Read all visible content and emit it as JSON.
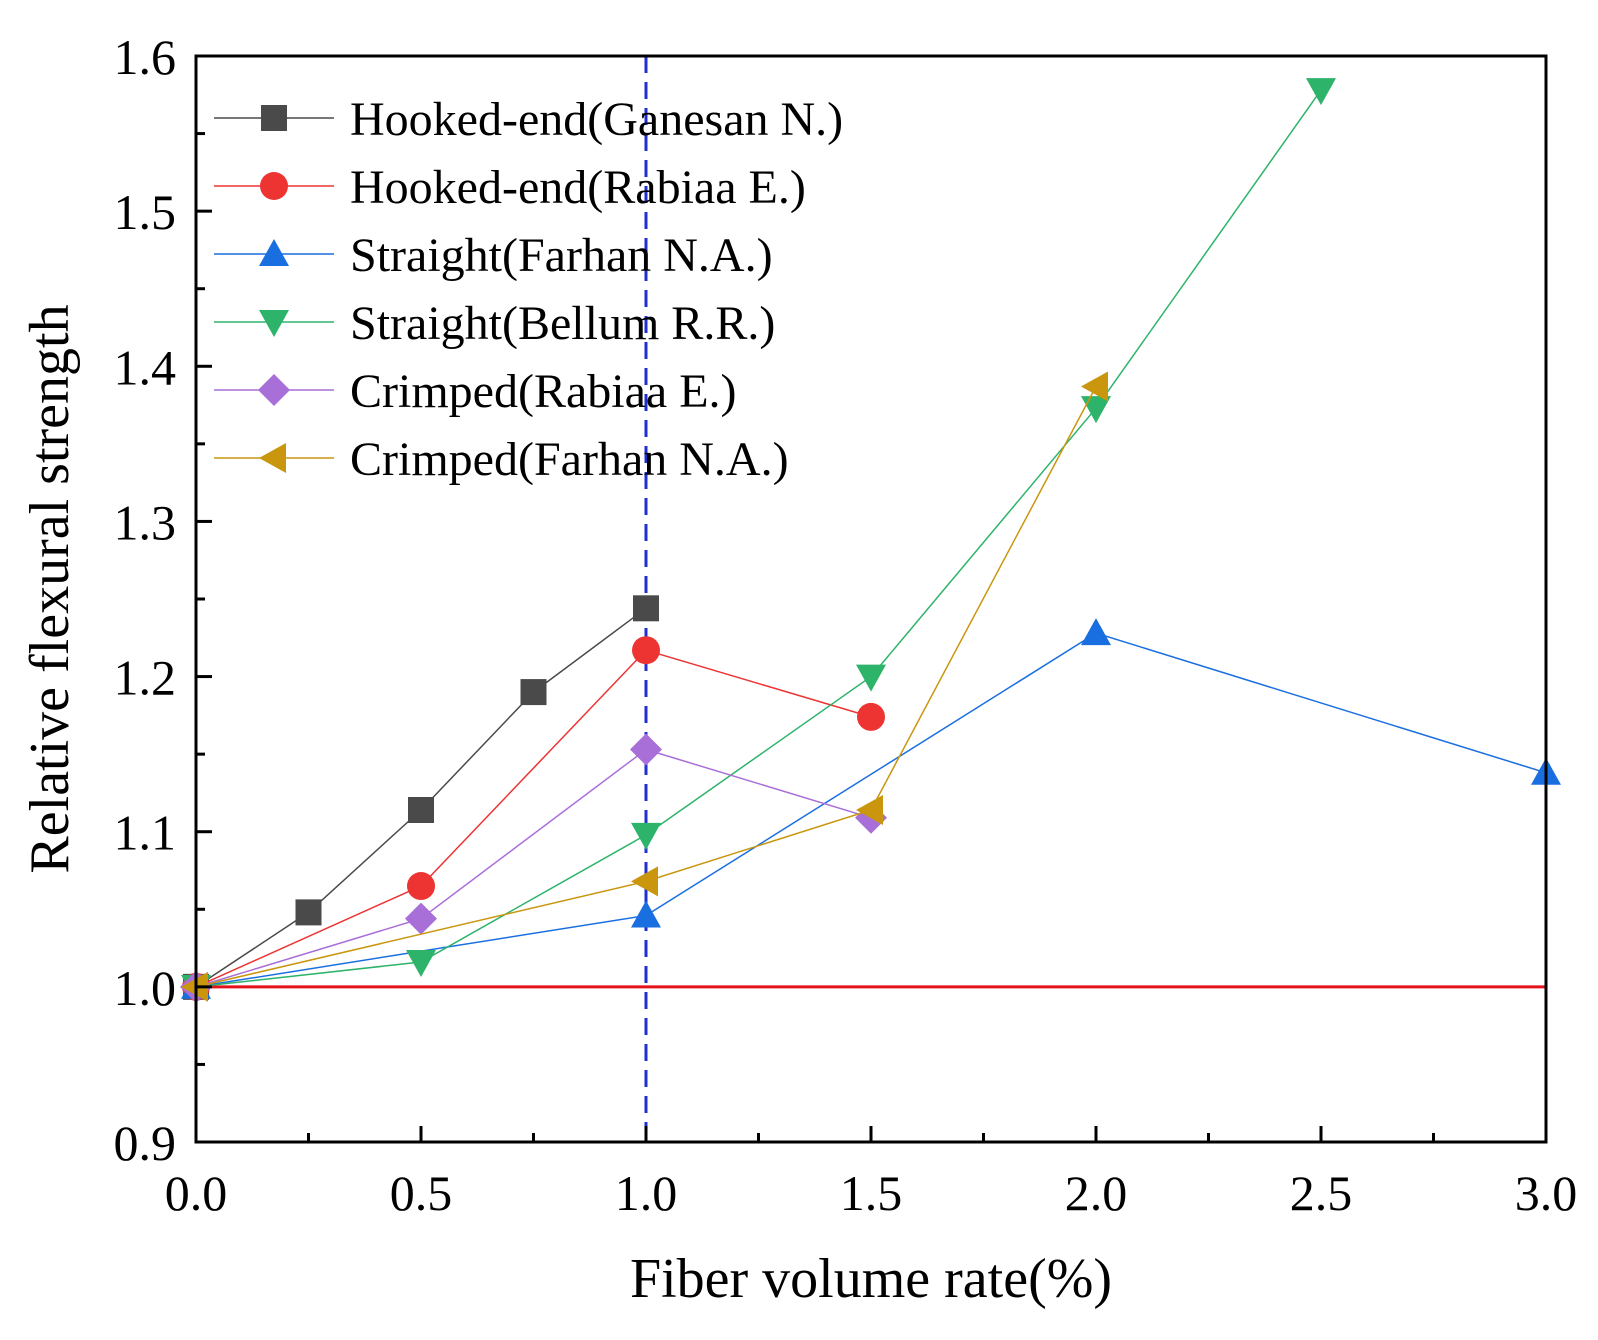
{
  "chart_data": {
    "type": "line",
    "xlabel": "Fiber volume rate(%)",
    "ylabel": "Relative flexural strength",
    "xlim": [
      0,
      3
    ],
    "ylim": [
      0.9,
      1.6
    ],
    "x_ticks": [
      "0.0",
      "0.5",
      "1.0",
      "1.5",
      "2.0",
      "2.5",
      "3.0"
    ],
    "y_ticks": [
      "0.9",
      "1.0",
      "1.1",
      "1.2",
      "1.3",
      "1.4",
      "1.5",
      "1.6"
    ],
    "legend_position": "top-left",
    "reference_lines": [
      {
        "orientation": "horizontal",
        "value": 1.0,
        "color": "#e3121b",
        "style": "solid"
      },
      {
        "orientation": "vertical",
        "value": 1.0,
        "color": "#1f2fd6",
        "style": "dashed"
      }
    ],
    "series": [
      {
        "name": "Hooked-end(Ganesan N.)",
        "marker": "square",
        "color": "#4a4a4a",
        "x": [
          0,
          0.25,
          0.5,
          0.75,
          1.0
        ],
        "y": [
          1.0,
          1.048,
          1.114,
          1.19,
          1.244
        ]
      },
      {
        "name": "Hooked-end(Rabiaa E.)",
        "marker": "circle",
        "color": "#ee3333",
        "x": [
          0,
          0.5,
          1.0,
          1.5
        ],
        "y": [
          1.0,
          1.065,
          1.217,
          1.174
        ]
      },
      {
        "name": "Straight(Farhan N.A.)",
        "marker": "triangle-up",
        "color": "#1a6fe0",
        "x": [
          0,
          1.0,
          2.0,
          3.0
        ],
        "y": [
          1.0,
          1.046,
          1.228,
          1.138
        ]
      },
      {
        "name": "Straight(Bellum R.R.)",
        "marker": "triangle-down",
        "color": "#2db36a",
        "x": [
          0,
          0.5,
          1.0,
          1.5,
          2.0,
          2.5
        ],
        "y": [
          1.0,
          1.016,
          1.098,
          1.2,
          1.373,
          1.578
        ]
      },
      {
        "name": "Crimped(Rabiaa E.)",
        "marker": "diamond",
        "color": "#a96fd9",
        "x": [
          0,
          0.5,
          1.0,
          1.5
        ],
        "y": [
          1.0,
          1.044,
          1.153,
          1.109
        ]
      },
      {
        "name": "Crimped(Farhan N.A.)",
        "marker": "triangle-left",
        "color": "#c9960e",
        "x": [
          0,
          1.0,
          1.5,
          2.0
        ],
        "y": [
          1.0,
          1.068,
          1.114,
          1.387
        ]
      }
    ]
  }
}
